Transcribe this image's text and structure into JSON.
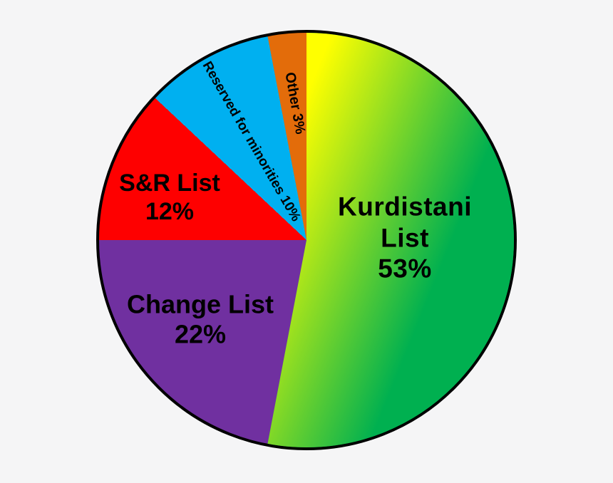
{
  "chart_data": {
    "type": "pie",
    "title": "",
    "categories": [
      "Kurdistani List",
      "Change List",
      "S&R List",
      "Reserved for minorities",
      "Other"
    ],
    "values": [
      53,
      22,
      12,
      10,
      3
    ],
    "unit": "%",
    "start_angle_deg": 0,
    "direction": "clockwise",
    "legend_position": "none",
    "slice_colors": {
      "kurdistani_gradient_start": "#FFFF00",
      "kurdistani_gradient_end": "#00B050",
      "change": "#7030A0",
      "sr": "#FE0000",
      "reserved": "#00B0F0",
      "other": "#E36C0A"
    },
    "outline_color": "#000000",
    "background_color": "#f5f5f6",
    "label_color": "#000000"
  },
  "labels": {
    "kurdistani": {
      "line1": "Kurdistani",
      "line2": "List",
      "line3": "53%"
    },
    "change": {
      "line1": "Change List",
      "line2": "22%"
    },
    "sr": {
      "line1": "S&R List",
      "line2": "12%"
    },
    "reserved": {
      "text": "Reserved for minorities 10%"
    },
    "other": {
      "text": "Other 3%"
    }
  }
}
